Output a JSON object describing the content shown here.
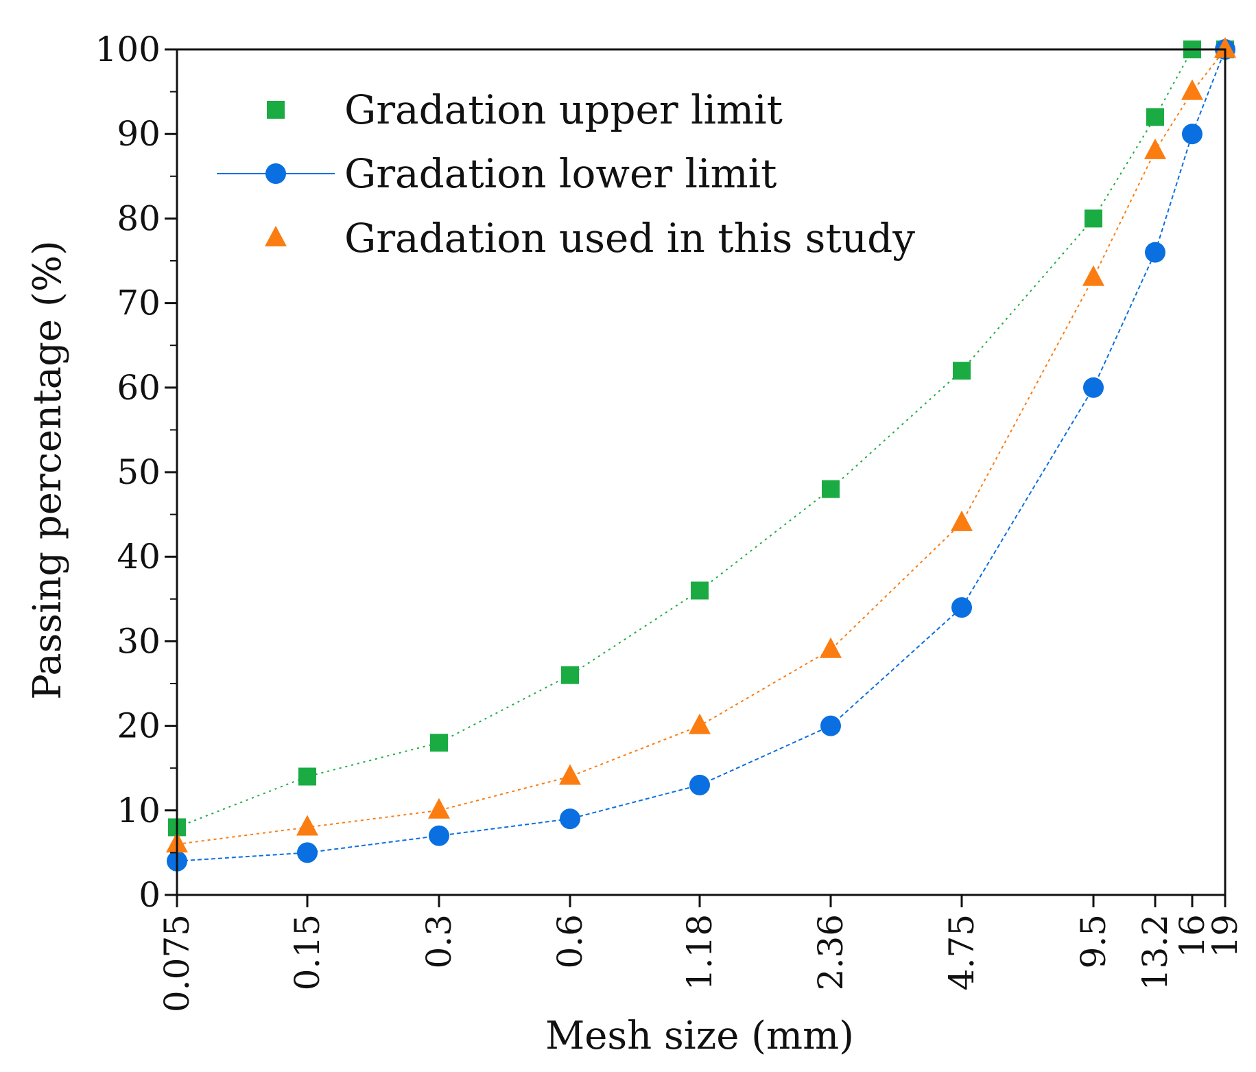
{
  "chart_data": {
    "type": "line",
    "title": "",
    "xlabel": "Mesh size (mm)",
    "ylabel": "Passing percentage (%)",
    "x_scale": "categorical",
    "categories": [
      "0.075",
      "0.15",
      "0.3",
      "0.6",
      "1.18",
      "2.36",
      "4.75",
      "9.5",
      "13.2",
      "16",
      "19"
    ],
    "y_ticks": [
      "0",
      "10",
      "20",
      "30",
      "40",
      "50",
      "60",
      "70",
      "80",
      "90",
      "100"
    ],
    "ylim": [
      0,
      100
    ],
    "grid": false,
    "legend_position": "top-left",
    "series": [
      {
        "name": "Gradation upper limit",
        "marker": "square",
        "color": "#1aac43",
        "values": [
          8,
          14,
          18,
          26,
          36,
          48,
          62,
          80,
          92,
          100,
          100
        ]
      },
      {
        "name": "Gradation lower limit",
        "marker": "circle",
        "color": "#0a6fe0",
        "values": [
          4,
          5,
          7,
          9,
          13,
          20,
          34,
          60,
          76,
          90,
          100
        ]
      },
      {
        "name": "Gradation used in this study",
        "marker": "triangle",
        "color": "#fb7c10",
        "values": [
          6,
          8,
          10,
          14,
          20,
          29,
          44,
          73,
          88,
          95,
          100
        ]
      }
    ]
  }
}
